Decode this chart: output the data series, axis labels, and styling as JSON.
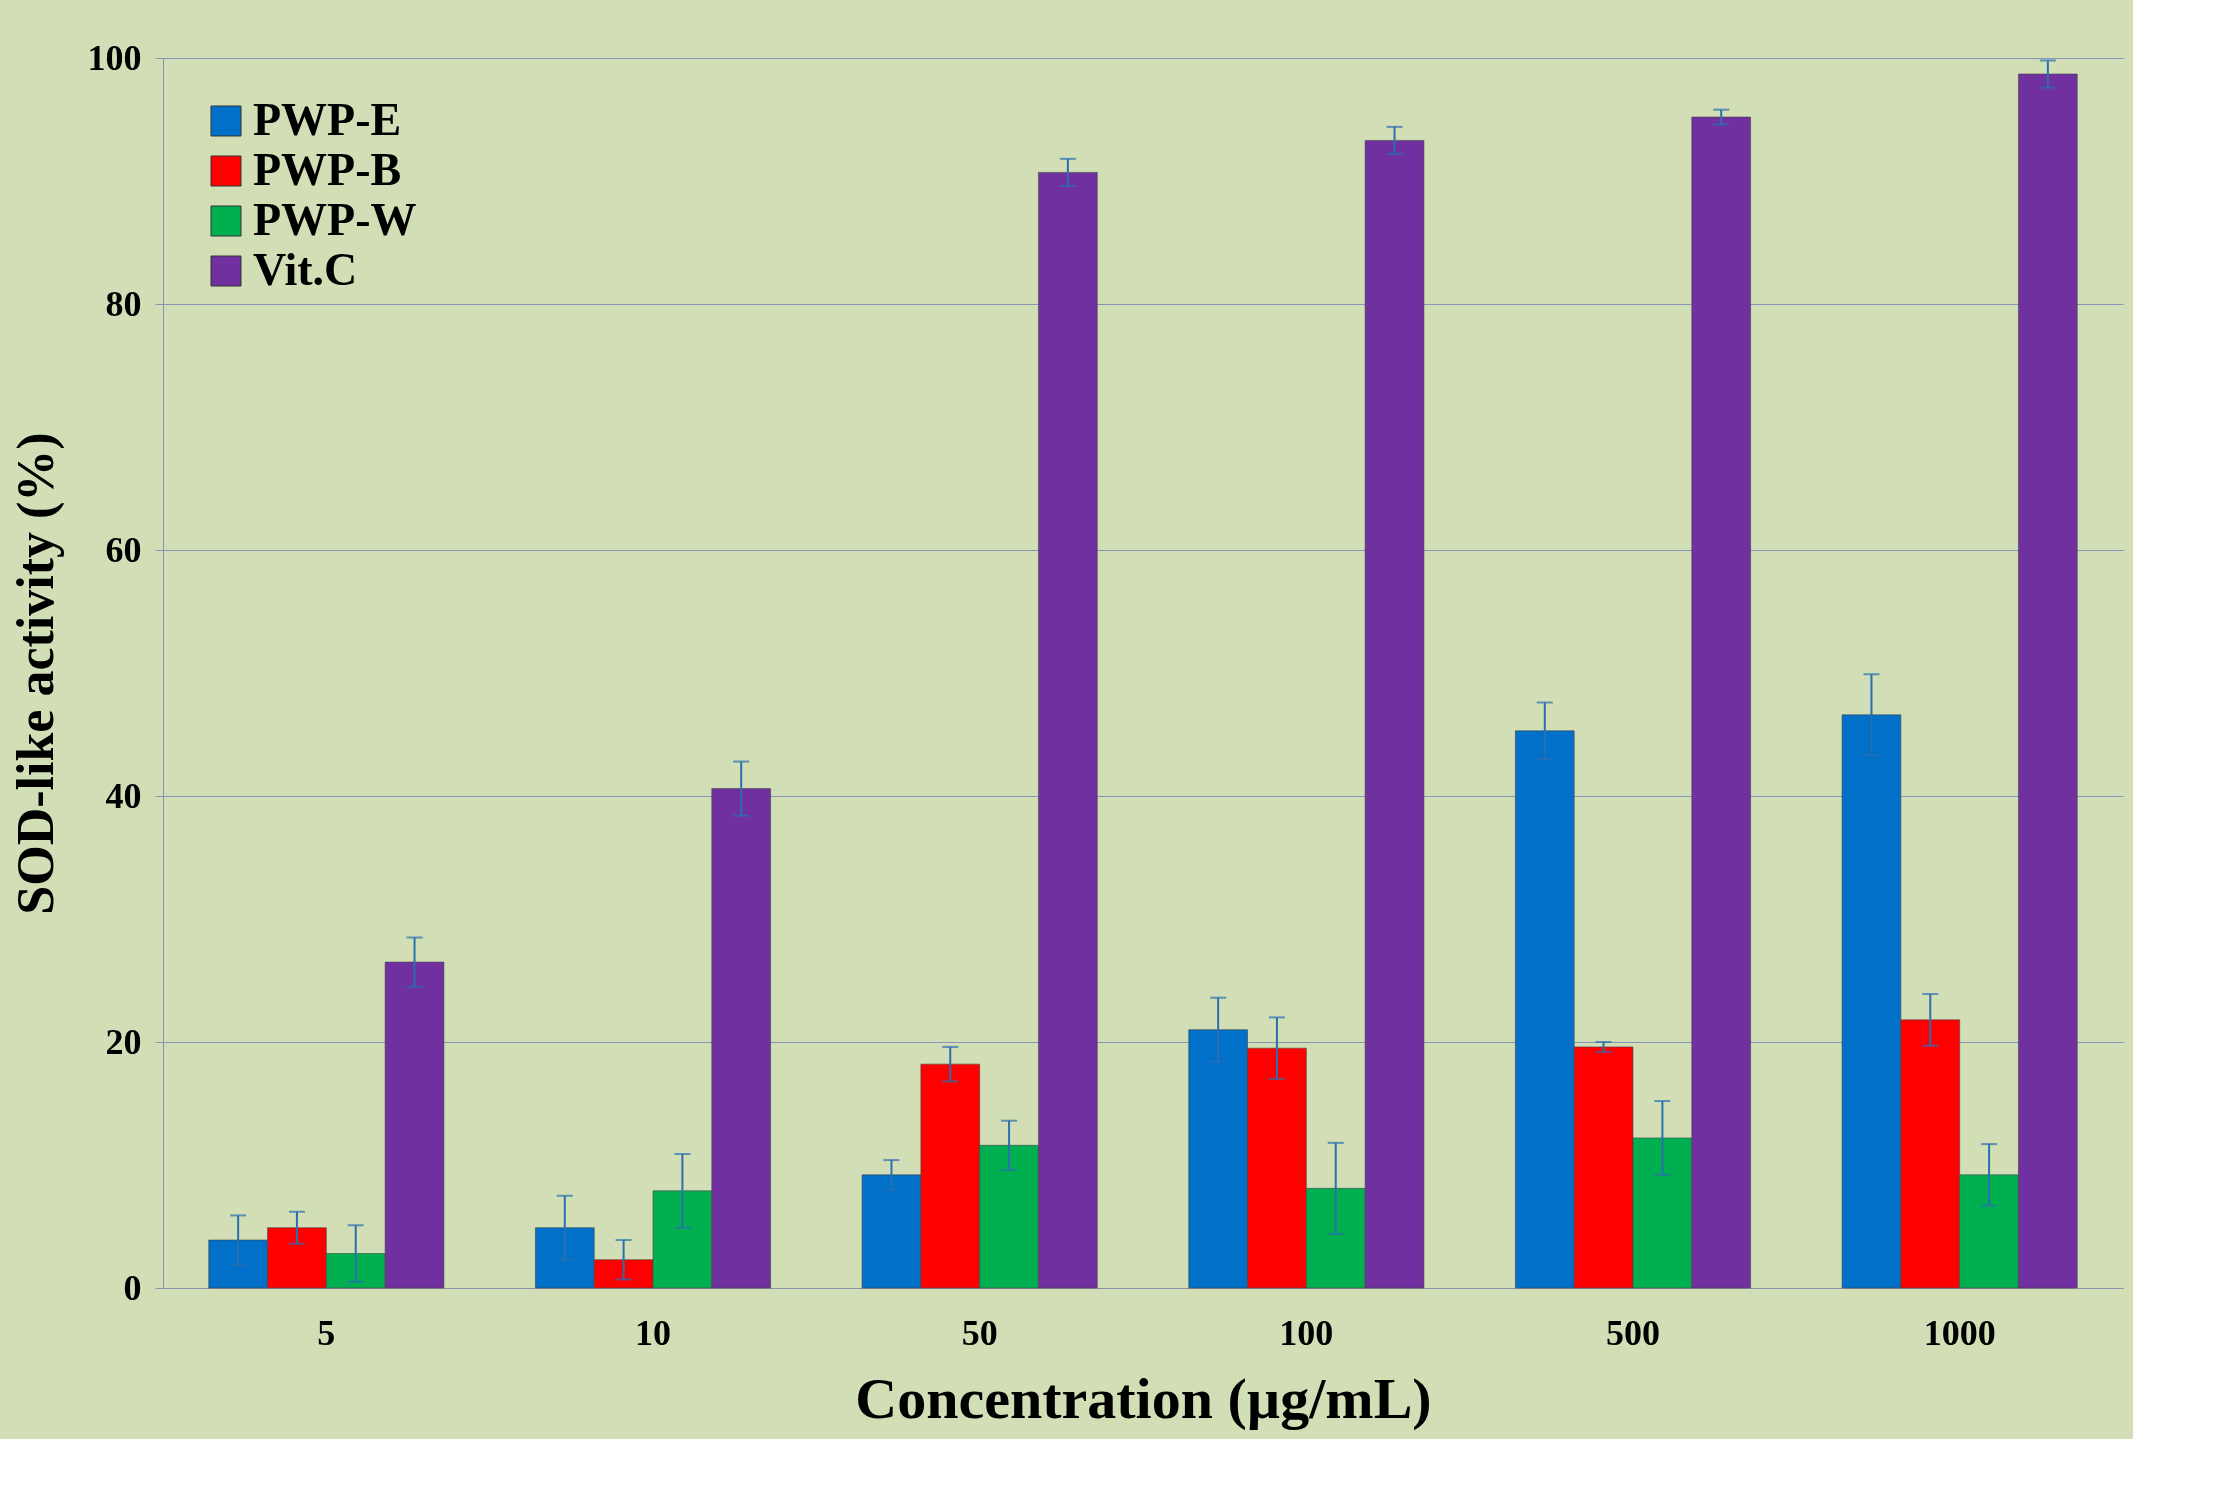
{
  "chart_data": {
    "type": "bar",
    "xlabel": "Concentration (µg/mL)",
    "ylabel": "SOD-like activity (%)",
    "categories": [
      "5",
      "10",
      "50",
      "100",
      "500",
      "1000"
    ],
    "series": [
      {
        "name": "PWP-E",
        "color": "#0070c8",
        "values": [
          3.9,
          4.9,
          9.2,
          21.0,
          45.3,
          46.6
        ],
        "errors": [
          2.0,
          2.6,
          1.2,
          2.6,
          2.3,
          3.3
        ]
      },
      {
        "name": "PWP-B",
        "color": "#ff0000",
        "values": [
          4.9,
          2.3,
          18.2,
          19.5,
          19.6,
          21.8
        ],
        "errors": [
          1.3,
          1.6,
          1.4,
          2.5,
          0.4,
          2.1
        ]
      },
      {
        "name": "PWP-W",
        "color": "#00b050",
        "values": [
          2.8,
          7.9,
          11.6,
          8.1,
          12.2,
          9.2
        ],
        "errors": [
          2.3,
          3.0,
          2.0,
          3.7,
          3.0,
          2.5
        ]
      },
      {
        "name": "Vit.C",
        "color": "#7030a0",
        "values": [
          26.5,
          40.6,
          90.7,
          93.3,
          95.2,
          98.7
        ],
        "errors": [
          2.0,
          2.2,
          1.1,
          1.1,
          0.6,
          1.1
        ]
      }
    ],
    "ylim": [
      0,
      100
    ],
    "yticks": [
      0,
      20,
      40,
      60,
      80,
      100
    ],
    "grid": "y",
    "legend": "top left"
  }
}
